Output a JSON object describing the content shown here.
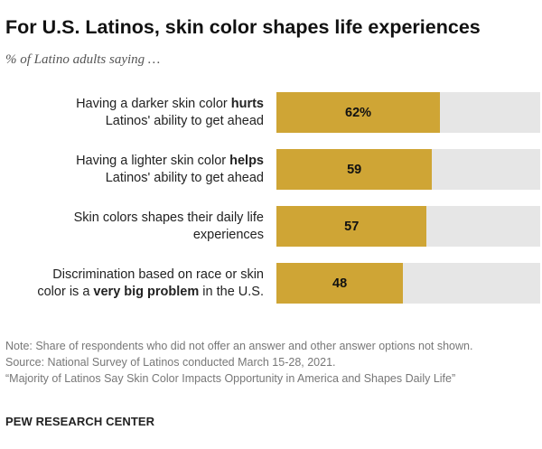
{
  "header": {
    "title": "For U.S. Latinos, skin color shapes life experiences",
    "subtitle": "% of Latino adults saying …"
  },
  "chart_data": {
    "type": "bar",
    "orientation": "horizontal",
    "categories": [
      "Having a darker skin color hurts Latinos' ability to get ahead",
      "Having a lighter skin color helps Latinos' ability to get ahead",
      "Skin colors shapes their daily life experiences",
      "Discrimination based on race or skin color is a very big problem in the U.S."
    ],
    "values": [
      62,
      59,
      57,
      48
    ],
    "value_labels": [
      "62%",
      "59",
      "57",
      "48"
    ],
    "xlim": [
      0,
      100
    ],
    "bar_color": "#cfa535",
    "track_color": "#e6e6e6",
    "grid": false,
    "label_lines": [
      [
        [
          "Having a darker skin color ",
          "hurts"
        ],
        [
          "Latinos' ability to get ahead",
          ""
        ]
      ],
      [
        [
          "Having a lighter skin color ",
          "helps"
        ],
        [
          "Latinos' ability to get ahead",
          ""
        ]
      ],
      [
        [
          "Skin colors shapes their daily life",
          ""
        ],
        [
          "experiences",
          ""
        ]
      ],
      [
        [
          "Discrimination based on race or skin",
          ""
        ],
        [
          "color is a ",
          "very big problem",
          " in the U.S."
        ]
      ]
    ]
  },
  "footer": {
    "note": "Note: Share of respondents who did not offer an answer and other answer options not shown.",
    "source": "Source: National Survey of Latinos conducted March 15-28, 2021.",
    "report": "“Majority of Latinos Say Skin Color Impacts Opportunity in America and Shapes Daily Life”",
    "brand": "PEW RESEARCH CENTER"
  }
}
